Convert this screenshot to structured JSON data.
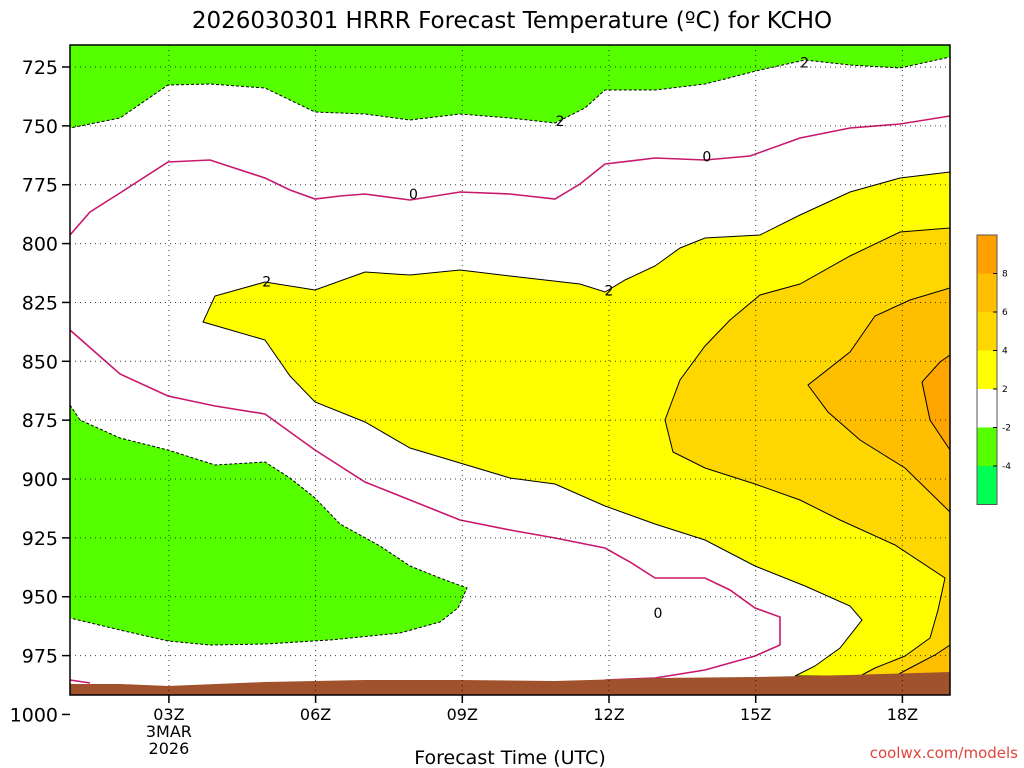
{
  "chart_data": {
    "type": "heatmap",
    "subtype": "filled-contour",
    "title": "2026030301 HRRR Forecast Temperature (ºC) for KCHO",
    "xlabel": "Forecast Time (UTC)",
    "x_ticks": [
      "03Z",
      "06Z",
      "09Z",
      "12Z",
      "15Z",
      "18Z"
    ],
    "x_start_label": [
      "3MAR",
      "2026"
    ],
    "y_ticks": [
      "725",
      "750",
      "775",
      "800",
      "825",
      "850",
      "875",
      "900",
      "925",
      "950",
      "975",
      "1000"
    ],
    "y_axis": "pressure (hPa), inverted",
    "grid": true,
    "contour_labels": [
      {
        "text": "2",
        "x": "16Z",
        "y": 723
      },
      {
        "text": "2",
        "x": "11Z",
        "y": 748
      },
      {
        "text": "0",
        "x": "14Z",
        "y": 763
      },
      {
        "text": "0",
        "x": "08Z",
        "y": 779
      },
      {
        "text": "2",
        "x": "05Z",
        "y": 816
      },
      {
        "text": "2",
        "x": "12Z",
        "y": 820
      },
      {
        "text": "0",
        "x": "13Z",
        "y": 957
      }
    ],
    "colorbar": {
      "ticks": [
        "8",
        "6",
        "4",
        "2",
        "-2",
        "-4"
      ],
      "bins": [
        {
          "range": [
            8,
            10
          ],
          "color": "#ff9f00"
        },
        {
          "range": [
            6,
            8
          ],
          "color": "#ffbe00"
        },
        {
          "range": [
            4,
            6
          ],
          "color": "#ffd700"
        },
        {
          "range": [
            2,
            4
          ],
          "color": "#ffff00"
        },
        {
          "range": [
            -2,
            2
          ],
          "color": "#ffffff"
        },
        {
          "range": [
            -4,
            -2
          ],
          "color": "#55ff00"
        },
        {
          "range": [
            -6,
            -4
          ],
          "color": "#00ff55"
        }
      ]
    },
    "colors": {
      "green": "#55ff00",
      "yellow": "#ffff00",
      "gold": "#ffd700",
      "orange1": "#ffbe00",
      "orange2": "#ffa500",
      "orange3": "#ff9f00",
      "ground": "#a0522d",
      "zero_line": "#c8186e"
    }
  },
  "credit": "coolwx.com/models"
}
